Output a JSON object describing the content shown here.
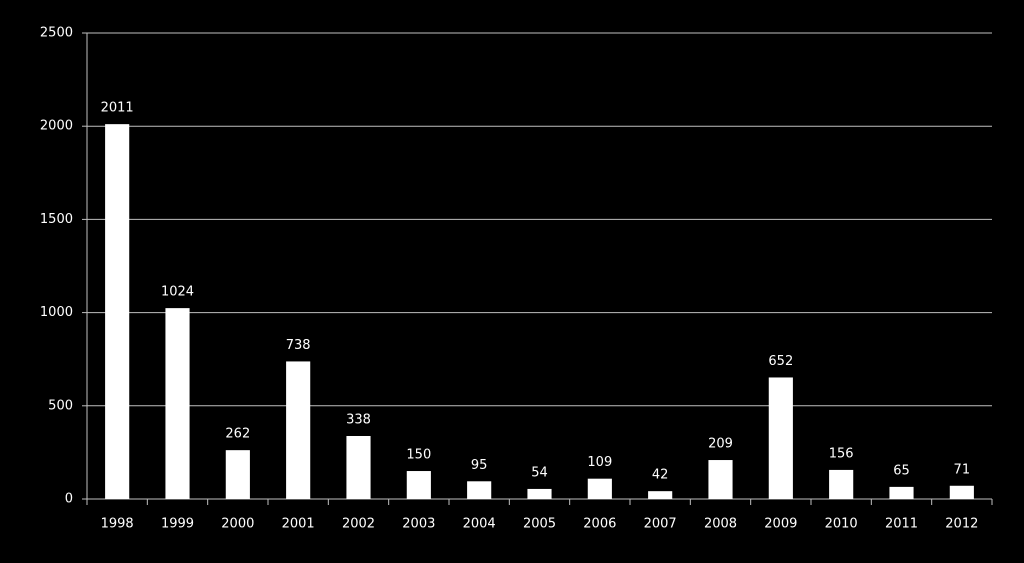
{
  "chart_data": {
    "type": "bar",
    "categories": [
      "1998",
      "1999",
      "2000",
      "2001",
      "2002",
      "2003",
      "2004",
      "2005",
      "2006",
      "2007",
      "2008",
      "2009",
      "2010",
      "2011",
      "2012"
    ],
    "values": [
      2011,
      1024,
      262,
      738,
      338,
      150,
      95,
      54,
      109,
      42,
      209,
      652,
      156,
      65,
      71
    ],
    "color": "#ffffff",
    "ylim": [
      0,
      2500
    ],
    "yticks": [
      0,
      500,
      1000,
      1500,
      2000,
      2500
    ],
    "grid": true,
    "data_labels": true
  }
}
